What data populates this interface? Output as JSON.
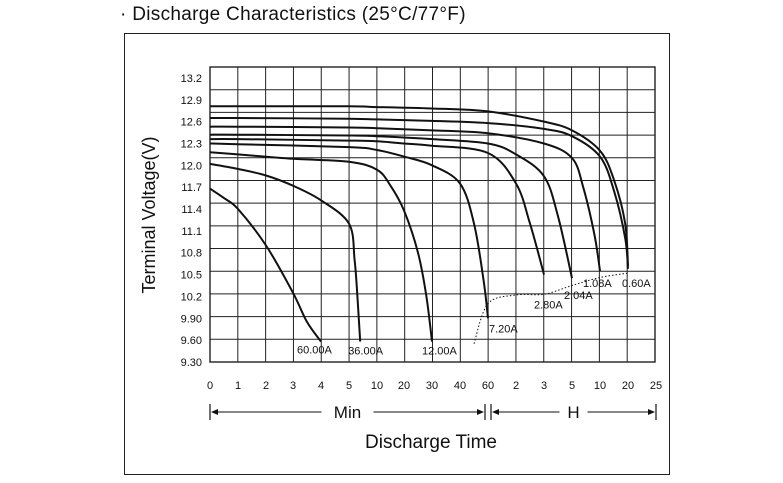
{
  "title": {
    "bullet": "·",
    "text": "Discharge Characteristics",
    "conditions": "(25°C/77°F)"
  },
  "colors": {
    "line": "#111111",
    "grid": "#222222",
    "background": "#ffffff"
  },
  "chart_data": {
    "type": "line",
    "title": "Discharge Characteristics (25°C/77°F)",
    "xlabel": "Discharge Time",
    "ylabel": "Terminal Voltage(V)",
    "x_scale": "log-time",
    "x_ticks": [
      "0",
      "1",
      "2",
      "3",
      "4",
      "5",
      "10",
      "20",
      "30",
      "40",
      "60",
      "2",
      "3",
      "5",
      "10",
      "20",
      "25"
    ],
    "x_tick_minutes": [
      0,
      1,
      2,
      3,
      4,
      5,
      10,
      20,
      30,
      40,
      60,
      120,
      180,
      300,
      600,
      1200,
      1500
    ],
    "x_ranges": [
      {
        "label": "Min",
        "from": "0",
        "to": "60"
      },
      {
        "label": "H",
        "from": "60",
        "to": "25"
      }
    ],
    "y_ticks": [
      "9.30",
      "9.60",
      "9.90",
      "10.2",
      "10.5",
      "10.8",
      "11.1",
      "11.4",
      "11.7",
      "12.0",
      "12.3",
      "12.6",
      "12.9",
      "13.2"
    ],
    "ylim": [
      9.3,
      13.35
    ],
    "grid": true,
    "cutoff_curve": [
      {
        "x": 50,
        "y": 9.55
      },
      {
        "x": 60,
        "y": 10.1
      },
      {
        "x": 120,
        "y": 10.22
      },
      {
        "x": 180,
        "y": 10.23
      },
      {
        "x": 300,
        "y": 10.35
      },
      {
        "x": 600,
        "y": 10.46
      },
      {
        "x": 1200,
        "y": 10.52
      }
    ],
    "series": [
      {
        "name": "60.00A",
        "x": [
          0,
          0.5,
          1,
          2,
          3,
          3.5,
          4
        ],
        "y": [
          11.68,
          11.55,
          11.4,
          10.9,
          10.25,
          9.85,
          9.58
        ]
      },
      {
        "name": "36.00A",
        "x": [
          0,
          1,
          2,
          3,
          4,
          5,
          6,
          6.5,
          7
        ],
        "y": [
          12.02,
          11.95,
          11.86,
          11.72,
          11.52,
          11.2,
          10.7,
          10.2,
          9.58
        ]
      },
      {
        "name": "12.00A",
        "x": [
          0,
          1,
          3,
          5,
          10,
          15,
          20,
          25,
          28,
          30
        ],
        "y": [
          12.18,
          12.15,
          12.09,
          12.05,
          11.94,
          11.72,
          11.38,
          10.8,
          10.2,
          9.58
        ]
      },
      {
        "name": "7.20A",
        "x": [
          0,
          1,
          5,
          10,
          20,
          30,
          40,
          50,
          57,
          60
        ],
        "y": [
          12.3,
          12.29,
          12.25,
          12.21,
          12.12,
          12.0,
          11.75,
          11.2,
          10.4,
          9.9
        ]
      },
      {
        "name": "2.80A",
        "x": [
          0,
          1,
          5,
          10,
          20,
          30,
          60,
          120,
          150,
          180
        ],
        "y": [
          12.36,
          12.36,
          12.34,
          12.33,
          12.3,
          12.27,
          12.17,
          11.75,
          11.2,
          10.5
        ]
      },
      {
        "name": "2.04A",
        "x": [
          0,
          1,
          5,
          10,
          30,
          60,
          120,
          180,
          240,
          300
        ],
        "y": [
          12.42,
          12.42,
          12.41,
          12.4,
          12.36,
          12.3,
          12.15,
          11.85,
          11.3,
          10.45
        ]
      },
      {
        "name": "1.08A",
        "x": [
          0,
          1,
          5,
          10,
          30,
          60,
          180,
          300,
          420,
          540,
          600
        ],
        "y": [
          12.53,
          12.53,
          12.52,
          12.51,
          12.48,
          12.44,
          12.3,
          12.1,
          11.7,
          11.05,
          10.55
        ]
      },
      {
        "name": "0.60A",
        "x": [
          0,
          1,
          5,
          10,
          30,
          60,
          180,
          300,
          600,
          900,
          1140,
          1200
        ],
        "y": [
          12.65,
          12.65,
          12.64,
          12.63,
          12.61,
          12.58,
          12.5,
          12.4,
          12.12,
          11.65,
          11.0,
          10.58
        ]
      },
      {
        "x": [
          0,
          1,
          5,
          10,
          30,
          60,
          180,
          300,
          600,
          900,
          1140,
          1200
        ],
        "y": [
          12.81,
          12.81,
          12.81,
          12.8,
          12.78,
          12.74,
          12.6,
          12.48,
          12.2,
          11.8,
          11.2,
          10.62
        ]
      }
    ],
    "curve_labels": [
      {
        "series": 0,
        "text": "60.00A",
        "x": 4,
        "y": 9.58
      },
      {
        "series": 1,
        "text": "36.00A",
        "x": 7,
        "y": 9.58
      },
      {
        "series": 2,
        "text": "12.00A",
        "x": 30,
        "y": 9.58
      },
      {
        "series": 3,
        "text": "7.20A",
        "x": 60,
        "y": 9.9
      },
      {
        "series": 4,
        "text": "2.80A",
        "x": 180,
        "y": 10.2
      },
      {
        "series": 5,
        "text": "2.04A",
        "x": 300,
        "y": 10.3
      },
      {
        "series": 6,
        "text": "1.08A",
        "x": 600,
        "y": 10.47
      },
      {
        "series": 7,
        "text": "0.60A",
        "x": 1200,
        "y": 10.47
      }
    ]
  }
}
